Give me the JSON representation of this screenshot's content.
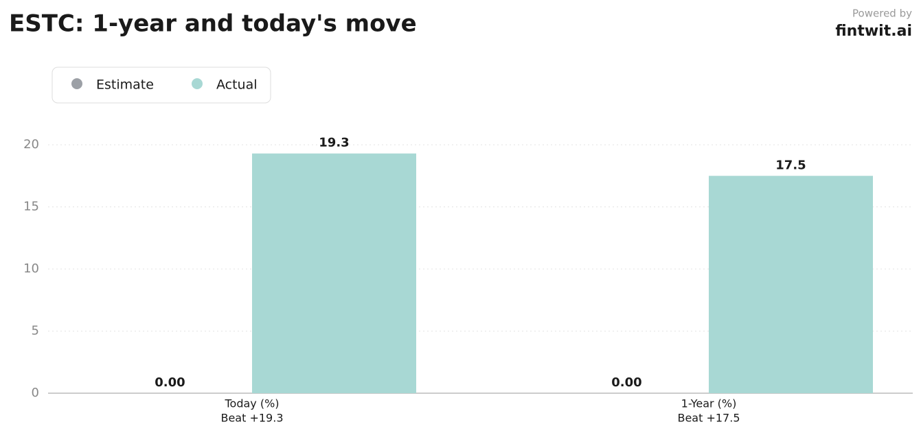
{
  "chart_data": {
    "type": "grouped_bar",
    "title": "ESTC: 1-year and today's move",
    "categories": [
      "Today (%)",
      "1-Year (%)"
    ],
    "category_sublabels": [
      "Beat +19.3",
      "Beat +17.5"
    ],
    "series": [
      {
        "name": "Estimate",
        "color": "#9ca0a6",
        "values": [
          0,
          0
        ],
        "value_labels": [
          "0.00",
          "0.00"
        ]
      },
      {
        "name": "Actual",
        "color": "#a8d8d4",
        "values": [
          19.3,
          17.5
        ]
      }
    ],
    "ylim": [
      0,
      20
    ],
    "yticks": [
      0,
      5,
      10,
      15,
      20
    ],
    "grid": true,
    "legend": "top-left"
  },
  "branding": {
    "powered_by": "Powered by",
    "name": "fintwit.ai"
  }
}
